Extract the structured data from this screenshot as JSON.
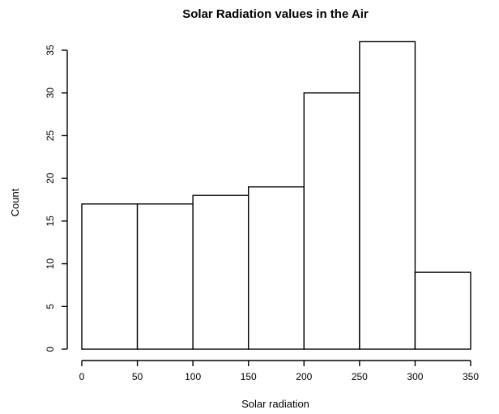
{
  "chart_data": {
    "type": "bar",
    "title": "Solar Radiation values in the Air",
    "xlabel": "Solar radiation",
    "ylabel": "Count",
    "bins": [
      {
        "start": 0,
        "end": 50,
        "count": 17
      },
      {
        "start": 50,
        "end": 100,
        "count": 17
      },
      {
        "start": 100,
        "end": 150,
        "count": 18
      },
      {
        "start": 150,
        "end": 200,
        "count": 19
      },
      {
        "start": 200,
        "end": 250,
        "count": 30
      },
      {
        "start": 250,
        "end": 300,
        "count": 36
      },
      {
        "start": 300,
        "end": 350,
        "count": 9
      }
    ],
    "xlim": [
      0,
      350
    ],
    "ylim": [
      0,
      35
    ],
    "x_ticks": [
      0,
      50,
      100,
      150,
      200,
      250,
      300,
      350
    ],
    "y_ticks": [
      0,
      5,
      10,
      15,
      20,
      25,
      30,
      35
    ],
    "grid": false,
    "colors": {
      "bar_fill": "#ffffff",
      "bar_stroke": "#000000"
    }
  }
}
